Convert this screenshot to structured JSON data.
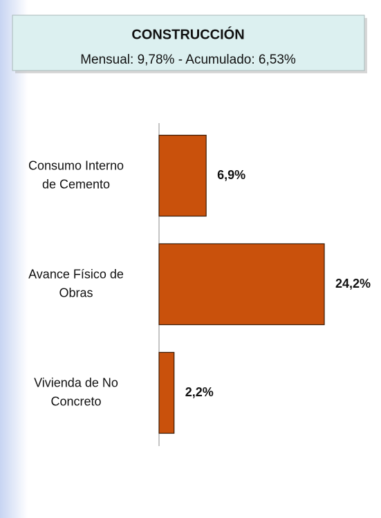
{
  "chart_data": {
    "type": "hbar",
    "title": "CONSTRUCCIÓN",
    "subtitle": "Mensual: 9,78% - Acumulado: 6,53%",
    "categories": [
      "Consumo Interno de Cemento",
      "Avance Físico de Obras",
      "Vivienda de No Concreto"
    ],
    "values": [
      6.9,
      24.2,
      2.2
    ],
    "value_labels": [
      "6,9%",
      "24,2%",
      "2,2%"
    ],
    "color": "#c9510c"
  }
}
